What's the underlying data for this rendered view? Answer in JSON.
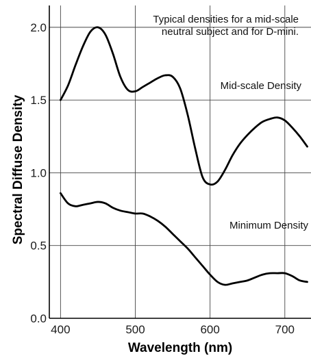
{
  "chart_data": {
    "type": "line",
    "title": "",
    "xlabel": "Wavelength (nm)",
    "ylabel": "Spectral Diffuse Density",
    "xlim": [
      385,
      735
    ],
    "ylim": [
      0.0,
      2.15
    ],
    "x_ticks": [
      "400",
      "500",
      "600",
      "700"
    ],
    "x_tick_values": [
      400,
      500,
      600,
      700
    ],
    "y_ticks": [
      "0.0",
      "0.5",
      "1.0",
      "1.5",
      "2.0"
    ],
    "y_tick_values": [
      0.0,
      0.5,
      1.0,
      1.5,
      2.0
    ],
    "grid": true,
    "annotations": [
      "Typical densities for a mid-scale",
      "neutral subject and for D-mini.",
      "Mid-scale Density",
      "Minimum Density"
    ],
    "series": [
      {
        "name": "Mid-scale Density",
        "x": [
          400,
          410,
          420,
          430,
          440,
          450,
          460,
          470,
          480,
          490,
          500,
          510,
          520,
          530,
          540,
          550,
          560,
          570,
          580,
          590,
          600,
          610,
          620,
          630,
          640,
          650,
          660,
          670,
          680,
          690,
          700,
          710,
          720,
          730
        ],
        "y": [
          1.5,
          1.6,
          1.74,
          1.87,
          1.97,
          2.0,
          1.95,
          1.82,
          1.66,
          1.57,
          1.56,
          1.59,
          1.62,
          1.65,
          1.67,
          1.66,
          1.58,
          1.4,
          1.17,
          0.97,
          0.92,
          0.94,
          1.02,
          1.12,
          1.2,
          1.26,
          1.31,
          1.35,
          1.37,
          1.38,
          1.36,
          1.31,
          1.25,
          1.18
        ]
      },
      {
        "name": "Minimum Density",
        "x": [
          400,
          410,
          420,
          430,
          440,
          450,
          460,
          470,
          480,
          490,
          500,
          510,
          520,
          530,
          540,
          550,
          560,
          570,
          580,
          590,
          600,
          610,
          620,
          630,
          640,
          650,
          660,
          670,
          680,
          690,
          700,
          710,
          720,
          730
        ],
        "y": [
          0.86,
          0.79,
          0.77,
          0.78,
          0.79,
          0.8,
          0.79,
          0.76,
          0.74,
          0.73,
          0.72,
          0.72,
          0.7,
          0.67,
          0.63,
          0.58,
          0.53,
          0.48,
          0.42,
          0.36,
          0.3,
          0.25,
          0.23,
          0.24,
          0.25,
          0.26,
          0.28,
          0.3,
          0.31,
          0.31,
          0.31,
          0.29,
          0.26,
          0.25
        ]
      }
    ]
  }
}
